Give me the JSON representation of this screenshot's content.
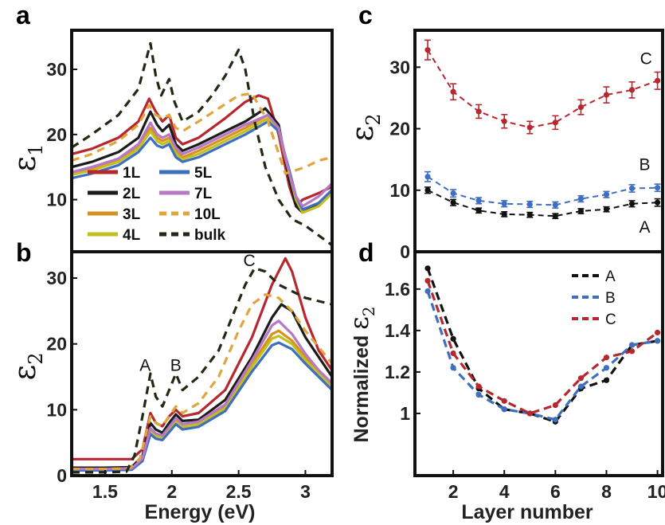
{
  "panel_labels": {
    "a": "a",
    "b": "b",
    "c": "c",
    "d": "d"
  },
  "y_labels": {
    "a": {
      "main": "ε",
      "sub": "1"
    },
    "b": {
      "main": "ε",
      "sub": "2"
    },
    "c": {
      "main": "ε",
      "sub": "2"
    },
    "d": {
      "prefix": "Normalized ",
      "main": "ε",
      "sub": "2"
    }
  },
  "x_labels": {
    "energy": "Energy (eV)",
    "layer": "Layer number"
  },
  "colors": {
    "1L": "#b5282f",
    "2L": "#1c1c1c",
    "3L": "#d6921f",
    "4L": "#c3bf22",
    "5L": "#3e6fbf",
    "7L": "#b779c6",
    "10L": "#e0a53c",
    "bulk": "#1f2a12",
    "A": "#111111",
    "B": "#3e6fbf",
    "C": "#b5282f"
  },
  "chart_data": [
    {
      "panel": "a",
      "type": "line",
      "ylabel": "ε1",
      "xlim": [
        1.25,
        3.2
      ],
      "ylim": [
        2,
        36
      ],
      "x_ticks": [],
      "y_ticks": [
        10,
        20,
        30
      ],
      "legend": {
        "position": "lower-left",
        "entries": [
          "1L",
          "5L",
          "2L",
          "7L",
          "3L",
          "10L",
          "4L",
          "bulk"
        ]
      },
      "series": [
        {
          "name": "1L",
          "dashed": false,
          "x": [
            1.25,
            1.4,
            1.6,
            1.75,
            1.83,
            1.88,
            1.93,
            1.98,
            2.03,
            2.08,
            2.2,
            2.4,
            2.55,
            2.65,
            2.72,
            2.8,
            2.88,
            2.93,
            2.98,
            3.1,
            3.2
          ],
          "y": [
            17,
            17.8,
            19.5,
            22,
            25.5,
            23.5,
            22,
            23,
            19.5,
            18.5,
            19.5,
            22.5,
            25,
            26,
            25.5,
            20,
            12,
            9,
            10,
            11,
            12
          ]
        },
        {
          "name": "2L",
          "dashed": false,
          "x": [
            1.25,
            1.4,
            1.6,
            1.75,
            1.84,
            1.89,
            1.93,
            1.98,
            2.03,
            2.08,
            2.2,
            2.4,
            2.55,
            2.7,
            2.8,
            2.88,
            2.93,
            2.98,
            3.1,
            3.2
          ],
          "y": [
            15,
            15.8,
            17.3,
            19.5,
            23.5,
            21.5,
            20.5,
            21.5,
            18.5,
            17.5,
            18.5,
            20.5,
            22,
            24,
            21.5,
            13,
            9,
            8,
            9.5,
            11
          ]
        },
        {
          "name": "3L",
          "dashed": false,
          "x": [
            1.25,
            1.4,
            1.6,
            1.75,
            1.84,
            1.89,
            1.93,
            1.98,
            2.03,
            2.08,
            2.2,
            2.4,
            2.55,
            2.72,
            2.8,
            2.88,
            2.93,
            2.98,
            3.1,
            3.2
          ],
          "y": [
            14,
            14.8,
            16,
            18,
            21,
            19.5,
            19,
            19.5,
            17.5,
            16.5,
            17.5,
            19.5,
            21,
            23,
            21,
            14,
            10,
            8,
            9,
            11
          ]
        },
        {
          "name": "4L",
          "dashed": false,
          "x": [
            1.25,
            1.4,
            1.6,
            1.75,
            1.84,
            1.89,
            1.93,
            1.98,
            2.03,
            2.08,
            2.2,
            2.4,
            2.55,
            2.72,
            2.8,
            2.88,
            2.93,
            2.98,
            3.1,
            3.2
          ],
          "y": [
            13.8,
            14.5,
            15.8,
            17.8,
            20.5,
            19,
            18.5,
            19,
            17,
            16.2,
            17,
            19,
            20.5,
            22.5,
            20.5,
            14,
            10,
            8,
            9,
            11
          ]
        },
        {
          "name": "5L",
          "dashed": false,
          "x": [
            1.25,
            1.4,
            1.6,
            1.75,
            1.84,
            1.89,
            1.93,
            1.98,
            2.03,
            2.08,
            2.2,
            2.4,
            2.55,
            2.72,
            2.8,
            2.88,
            2.93,
            2.98,
            3.1,
            3.2
          ],
          "y": [
            13.3,
            14,
            15.3,
            17.3,
            19.5,
            18.3,
            18,
            18.5,
            16.5,
            15.8,
            16.5,
            18.5,
            20,
            22,
            20.5,
            14.5,
            10.5,
            8.5,
            9.5,
            11.5
          ]
        },
        {
          "name": "7L",
          "dashed": false,
          "x": [
            1.25,
            1.4,
            1.6,
            1.75,
            1.84,
            1.89,
            1.93,
            1.98,
            2.03,
            2.08,
            2.2,
            2.4,
            2.55,
            2.72,
            2.8,
            2.88,
            2.93,
            2.98,
            3.1,
            3.2
          ],
          "y": [
            14.2,
            15,
            16.3,
            18.5,
            21.8,
            20,
            19.5,
            20,
            18,
            17,
            18,
            20,
            21.5,
            23,
            21,
            14,
            10.5,
            9,
            10.5,
            12.5
          ]
        },
        {
          "name": "10L",
          "dashed": true,
          "x": [
            1.25,
            1.4,
            1.6,
            1.75,
            1.83,
            1.88,
            1.93,
            1.98,
            2.03,
            2.08,
            2.2,
            2.35,
            2.5,
            2.6,
            2.72,
            2.85,
            3.0,
            3.1,
            3.2
          ],
          "y": [
            16,
            17,
            19,
            21.5,
            24.5,
            23,
            22.5,
            23,
            21,
            20.5,
            22,
            24,
            26,
            26.3,
            22,
            14,
            15,
            16,
            16.5
          ]
        },
        {
          "name": "bulk",
          "dashed": true,
          "x": [
            1.25,
            1.4,
            1.6,
            1.75,
            1.84,
            1.88,
            1.92,
            1.98,
            2.02,
            2.08,
            2.2,
            2.3,
            2.4,
            2.5,
            2.55,
            2.62,
            2.7,
            2.8,
            2.9,
            3.0,
            3.1,
            3.2
          ],
          "y": [
            18,
            20,
            23,
            27,
            34,
            29,
            26,
            28.5,
            25,
            22,
            23.5,
            26,
            29,
            33,
            30,
            22,
            15,
            10,
            7,
            6,
            4.5,
            3
          ]
        }
      ]
    },
    {
      "panel": "b",
      "type": "line",
      "ylabel": "ε2",
      "xlabel": "Energy (eV)",
      "xlim": [
        1.25,
        3.2
      ],
      "ylim": [
        0,
        34
      ],
      "x_ticks": [
        1.5,
        2,
        2.5,
        3
      ],
      "y_ticks": [
        0,
        10,
        20,
        30
      ],
      "annotations": [
        "A",
        "B",
        "C"
      ],
      "series": [
        {
          "name": "1L",
          "dashed": false,
          "x": [
            1.25,
            1.5,
            1.7,
            1.78,
            1.84,
            1.88,
            1.93,
            1.98,
            2.03,
            2.08,
            2.2,
            2.4,
            2.6,
            2.75,
            2.85,
            2.9,
            3.0,
            3.1,
            3.2
          ],
          "y": [
            2.5,
            2.5,
            2.5,
            4,
            9.5,
            8,
            7.5,
            9,
            10,
            9,
            9.5,
            13,
            21,
            29,
            33,
            31,
            24,
            19,
            16
          ]
        },
        {
          "name": "2L",
          "dashed": false,
          "x": [
            1.25,
            1.5,
            1.7,
            1.78,
            1.84,
            1.88,
            1.93,
            1.98,
            2.03,
            2.08,
            2.2,
            2.4,
            2.6,
            2.75,
            2.82,
            2.9,
            3.0,
            3.1,
            3.2
          ],
          "y": [
            1.2,
            1.2,
            1.3,
            3,
            8,
            7,
            6.5,
            8,
            9.3,
            8.3,
            8.5,
            11.5,
            18,
            24,
            26,
            25,
            21,
            18,
            15
          ]
        },
        {
          "name": "3L",
          "dashed": false,
          "x": [
            1.25,
            1.5,
            1.7,
            1.78,
            1.84,
            1.88,
            1.93,
            1.98,
            2.03,
            2.08,
            2.2,
            2.4,
            2.6,
            2.75,
            2.8,
            2.9,
            3.0,
            3.1,
            3.2
          ],
          "y": [
            1,
            1,
            1.1,
            2.5,
            7,
            6.2,
            6,
            7.2,
            8.4,
            7.6,
            8,
            10.5,
            17,
            21.5,
            22,
            20.5,
            18,
            16,
            14
          ]
        },
        {
          "name": "4L",
          "dashed": false,
          "x": [
            1.25,
            1.5,
            1.7,
            1.78,
            1.84,
            1.88,
            1.93,
            1.98,
            2.03,
            2.08,
            2.2,
            2.4,
            2.6,
            2.75,
            2.8,
            2.9,
            3.0,
            3.1,
            3.2
          ],
          "y": [
            0.9,
            0.9,
            1,
            2.4,
            6.8,
            6,
            5.8,
            7,
            8.2,
            7.4,
            7.8,
            10.2,
            16.5,
            20.8,
            21.2,
            20,
            17.5,
            15.5,
            13.5
          ]
        },
        {
          "name": "5L",
          "dashed": false,
          "x": [
            1.25,
            1.5,
            1.7,
            1.78,
            1.84,
            1.88,
            1.93,
            1.98,
            2.03,
            2.08,
            2.2,
            2.4,
            2.6,
            2.75,
            2.8,
            2.9,
            3.0,
            3.1,
            3.2
          ],
          "y": [
            0.8,
            0.8,
            0.9,
            2.2,
            6.3,
            5.6,
            5.4,
            6.6,
            7.8,
            7,
            7.4,
            9.8,
            15.8,
            19.8,
            20.2,
            19.2,
            17,
            15,
            13
          ]
        },
        {
          "name": "7L",
          "dashed": false,
          "x": [
            1.25,
            1.5,
            1.7,
            1.78,
            1.84,
            1.88,
            1.93,
            1.98,
            2.03,
            2.08,
            2.2,
            2.4,
            2.6,
            2.75,
            2.8,
            2.9,
            3.0,
            3.1,
            3.2
          ],
          "y": [
            1,
            1,
            1.1,
            2.6,
            7.2,
            6.4,
            6.1,
            7.4,
            8.7,
            7.8,
            8.2,
            10.8,
            17.5,
            22.8,
            23.5,
            21.5,
            18.5,
            16,
            14
          ]
        },
        {
          "name": "10L",
          "dashed": true,
          "x": [
            1.25,
            1.5,
            1.68,
            1.76,
            1.84,
            1.88,
            1.93,
            1.98,
            2.03,
            2.08,
            2.2,
            2.35,
            2.5,
            2.6,
            2.7,
            2.8,
            2.9,
            3.0,
            3.2
          ],
          "y": [
            1,
            1,
            1.1,
            2.5,
            9,
            8,
            7.5,
            9,
            10.5,
            9.5,
            11,
            15,
            22,
            26,
            27.5,
            27,
            25,
            22,
            17
          ]
        },
        {
          "name": "bulk",
          "dashed": true,
          "x": [
            1.25,
            1.5,
            1.66,
            1.72,
            1.78,
            1.84,
            1.88,
            1.93,
            1.98,
            2.03,
            2.08,
            2.2,
            2.35,
            2.45,
            2.55,
            2.62,
            2.7,
            2.8,
            2.9,
            3.0,
            3.2
          ],
          "y": [
            0.5,
            0.5,
            0.6,
            3,
            9,
            15.5,
            12,
            10.5,
            13,
            15.5,
            13,
            15,
            19,
            24,
            29,
            31.5,
            31,
            29,
            28,
            27,
            26
          ]
        }
      ]
    },
    {
      "panel": "c",
      "type": "scatter",
      "ylabel": "ε2",
      "xlim": [
        0.5,
        10.2
      ],
      "ylim": [
        0,
        36
      ],
      "x_ticks": [],
      "y_ticks": [
        0,
        10,
        20,
        30
      ],
      "series": [
        {
          "name": "A",
          "x": [
            1,
            2,
            3,
            4,
            5,
            6,
            7,
            8,
            9,
            10
          ],
          "y": [
            10,
            8,
            6.7,
            6.1,
            6,
            5.8,
            6.6,
            6.9,
            7.8,
            8
          ],
          "err": [
            0.5,
            0.5,
            0.4,
            0.4,
            0.4,
            0.4,
            0.4,
            0.4,
            0.5,
            0.6
          ]
        },
        {
          "name": "B",
          "x": [
            1,
            2,
            3,
            4,
            5,
            6,
            7,
            8,
            9,
            10
          ],
          "y": [
            12.2,
            9.5,
            8.3,
            7.8,
            7.7,
            7.6,
            8.6,
            9.3,
            10.3,
            10.4
          ],
          "err": [
            0.8,
            0.6,
            0.5,
            0.5,
            0.5,
            0.5,
            0.5,
            0.5,
            0.6,
            0.6
          ]
        },
        {
          "name": "C",
          "x": [
            1,
            2,
            3,
            4,
            5,
            6,
            7,
            8,
            9,
            10
          ],
          "y": [
            32.8,
            26,
            22.8,
            21.2,
            20.2,
            21,
            23.5,
            25.5,
            26.3,
            27.8
          ],
          "err": [
            1.6,
            1.3,
            1.1,
            1.1,
            1,
            1.1,
            1.2,
            1.3,
            1.3,
            1.4
          ]
        }
      ],
      "annotations": [
        "A",
        "B",
        "C"
      ]
    },
    {
      "panel": "d",
      "type": "line",
      "ylabel": "Normalized ε2",
      "xlabel": "Layer number",
      "xlim": [
        0.5,
        10.2
      ],
      "ylim": [
        0.7,
        1.78
      ],
      "x_ticks": [
        2,
        4,
        6,
        8,
        10
      ],
      "y_ticks": [
        1,
        1.2,
        1.4,
        1.6
      ],
      "legend": {
        "position": "top-right",
        "entries": [
          "A",
          "B",
          "C"
        ]
      },
      "series": [
        {
          "name": "A",
          "x": [
            1,
            2,
            3,
            4,
            5,
            6,
            7,
            8,
            9,
            10
          ],
          "y": [
            1.7,
            1.36,
            1.12,
            1.02,
            1.0,
            0.96,
            1.12,
            1.16,
            1.33,
            1.35
          ]
        },
        {
          "name": "B",
          "x": [
            1,
            2,
            3,
            4,
            5,
            6,
            7,
            8,
            9,
            10
          ],
          "y": [
            1.59,
            1.22,
            1.09,
            1.02,
            1.0,
            0.97,
            1.13,
            1.22,
            1.33,
            1.35
          ]
        },
        {
          "name": "C",
          "x": [
            1,
            2,
            3,
            4,
            5,
            6,
            7,
            8,
            9,
            10
          ],
          "y": [
            1.64,
            1.29,
            1.13,
            1.06,
            1.0,
            1.04,
            1.17,
            1.27,
            1.3,
            1.39
          ]
        }
      ]
    }
  ],
  "legend_a": [
    {
      "key": "1L",
      "label": "1L"
    },
    {
      "key": "5L",
      "label": "5L"
    },
    {
      "key": "2L",
      "label": "2L"
    },
    {
      "key": "7L",
      "label": "7L"
    },
    {
      "key": "3L",
      "label": "3L"
    },
    {
      "key": "10L",
      "label": "10L"
    },
    {
      "key": "4L",
      "label": "4L"
    },
    {
      "key": "bulk",
      "label": "bulk"
    }
  ],
  "annotations_b": {
    "A": "A",
    "B": "B",
    "C": "C"
  },
  "annotations_c": {
    "A": "A",
    "B": "B",
    "C": "C"
  },
  "legend_d": [
    {
      "key": "A",
      "label": "A"
    },
    {
      "key": "B",
      "label": "B"
    },
    {
      "key": "C",
      "label": "C"
    }
  ]
}
